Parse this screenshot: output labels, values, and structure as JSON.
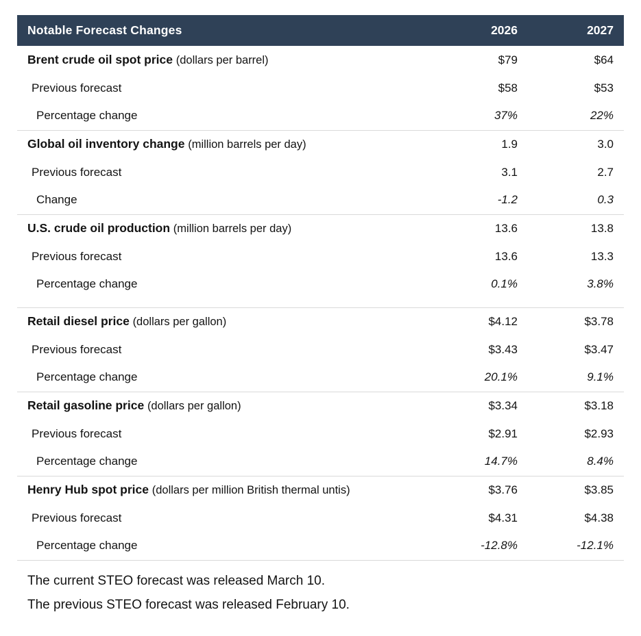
{
  "colors": {
    "header_bg": "#2f4157",
    "header_text": "#ffffff",
    "divider": "#d9d9d9",
    "body_text": "#131313"
  },
  "table": {
    "header": {
      "title": "Notable Forecast Changes",
      "col_2026": "2026",
      "col_2027": "2027"
    },
    "sections": [
      {
        "name": "Brent crude oil spot price",
        "unit": "(dollars per barrel)",
        "current_2026": "$79",
        "current_2027": "$64",
        "previous_label": "Previous forecast",
        "previous_2026": "$58",
        "previous_2027": "$53",
        "change_label": "Percentage change",
        "change_2026": "37%",
        "change_2027": "22%"
      },
      {
        "name": "Global oil inventory change",
        "unit": "(million barrels per day)",
        "current_2026": "1.9",
        "current_2027": "3.0",
        "previous_label": "Previous forecast",
        "previous_2026": "3.1",
        "previous_2027": "2.7",
        "change_label": "Change",
        "change_2026": "-1.2",
        "change_2027": "0.3"
      },
      {
        "name": "U.S. crude oil production",
        "unit": "(million barrels per day)",
        "current_2026": "13.6",
        "current_2027": "13.8",
        "previous_label": "Previous forecast",
        "previous_2026": "13.6",
        "previous_2027": "13.3",
        "change_label": "Percentage change",
        "change_2026": "0.1%",
        "change_2027": "3.8%"
      },
      {
        "name": "Retail diesel price",
        "unit": "(dollars per gallon)",
        "current_2026": "$4.12",
        "current_2027": "$3.78",
        "previous_label": "Previous forecast",
        "previous_2026": "$3.43",
        "previous_2027": "$3.47",
        "change_label": "Percentage change",
        "change_2026": "20.1%",
        "change_2027": "9.1%"
      },
      {
        "name": "Retail gasoline price",
        "unit": "(dollars per gallon)",
        "current_2026": "$3.34",
        "current_2027": "$3.18",
        "previous_label": "Previous forecast",
        "previous_2026": "$2.91",
        "previous_2027": "$2.93",
        "change_label": "Percentage change",
        "change_2026": "14.7%",
        "change_2027": "8.4%"
      },
      {
        "name": "Henry Hub spot price",
        "unit": "(dollars per million British thermal untis)",
        "current_2026": "$3.76",
        "current_2027": "$3.85",
        "previous_label": "Previous forecast",
        "previous_2026": "$4.31",
        "previous_2027": "$4.38",
        "change_label": "Percentage change",
        "change_2026": "-12.8%",
        "change_2027": "-12.1%"
      }
    ],
    "footnotes": [
      "The current STEO forecast was released March 10.",
      "The previous STEO forecast was released February 10."
    ]
  }
}
